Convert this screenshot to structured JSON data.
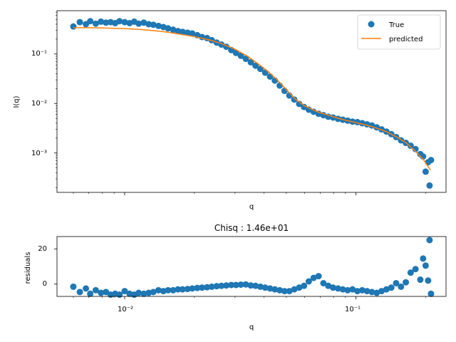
{
  "chart_data": [
    {
      "type": "scatter",
      "xlabel": "q",
      "ylabel": "I(q)",
      "xscale": "log",
      "yscale": "log",
      "xlim": [
        0.0051,
        0.245
      ],
      "ylim": [
        0.00016,
        0.75
      ],
      "y_tick_labels": [
        "10⁻³",
        "10⁻²",
        "10⁻¹"
      ],
      "y_tick_values": [
        0.001,
        0.01,
        0.1
      ],
      "legend_placement": "top-right",
      "colors": {
        "true": "#1f77b4",
        "predicted": "#ff7f0e"
      },
      "series": [
        {
          "name": "True",
          "kind": "scatter",
          "x": [
            0.006,
            0.0064,
            0.0068,
            0.0071,
            0.0075,
            0.0079,
            0.0083,
            0.0087,
            0.0091,
            0.0095,
            0.01,
            0.0105,
            0.011,
            0.0115,
            0.0121,
            0.0127,
            0.0133,
            0.014,
            0.0147,
            0.0154,
            0.0162,
            0.017,
            0.0178,
            0.0187,
            0.0196,
            0.0206,
            0.0216,
            0.0227,
            0.0238,
            0.025,
            0.0262,
            0.0275,
            0.0289,
            0.0303,
            0.0318,
            0.0334,
            0.0351,
            0.0368,
            0.0386,
            0.0405,
            0.0425,
            0.0446,
            0.0468,
            0.0491,
            0.0515,
            0.0541,
            0.0568,
            0.0596,
            0.0625,
            0.0656,
            0.0689,
            0.0723,
            0.0759,
            0.0796,
            0.0836,
            0.0877,
            0.092,
            0.0966,
            0.1014,
            0.1064,
            0.1116,
            0.1171,
            0.1229,
            0.129,
            0.1354,
            0.1421,
            0.1491,
            0.1565,
            0.1642,
            0.1723,
            0.1808,
            0.1897,
            0.195,
            0.2,
            0.205,
            0.208,
            0.211
          ],
          "y": [
            0.36,
            0.44,
            0.4,
            0.46,
            0.41,
            0.45,
            0.43,
            0.44,
            0.42,
            0.46,
            0.44,
            0.42,
            0.45,
            0.41,
            0.43,
            0.4,
            0.39,
            0.37,
            0.35,
            0.33,
            0.31,
            0.29,
            0.28,
            0.27,
            0.26,
            0.24,
            0.22,
            0.21,
            0.19,
            0.17,
            0.155,
            0.14,
            0.12,
            0.105,
            0.092,
            0.08,
            0.068,
            0.058,
            0.05,
            0.042,
            0.035,
            0.029,
            0.023,
            0.018,
            0.0145,
            0.012,
            0.0098,
            0.0085,
            0.0075,
            0.0068,
            0.0062,
            0.0058,
            0.0054,
            0.0052,
            0.0049,
            0.0047,
            0.0045,
            0.0043,
            0.0042,
            0.004,
            0.0038,
            0.0036,
            0.0033,
            0.003,
            0.0027,
            0.0024,
            0.0021,
            0.0018,
            0.0016,
            0.0014,
            0.0012,
            0.00095,
            0.00085,
            0.00042,
            0.00065,
            0.00022,
            0.00072
          ]
        },
        {
          "name": "predicted",
          "kind": "line",
          "x": [
            0.006,
            0.007,
            0.008,
            0.009,
            0.01,
            0.0115,
            0.013,
            0.015,
            0.017,
            0.02,
            0.023,
            0.026,
            0.03,
            0.034,
            0.038,
            0.042,
            0.046,
            0.05,
            0.055,
            0.06,
            0.065,
            0.07,
            0.076,
            0.082,
            0.09,
            0.1,
            0.11,
            0.12,
            0.135,
            0.15,
            0.165,
            0.18,
            0.195,
            0.21
          ],
          "y": [
            0.34,
            0.34,
            0.335,
            0.33,
            0.325,
            0.315,
            0.3,
            0.28,
            0.255,
            0.225,
            0.195,
            0.165,
            0.125,
            0.09,
            0.062,
            0.043,
            0.029,
            0.019,
            0.012,
            0.009,
            0.0075,
            0.0065,
            0.0058,
            0.0052,
            0.0046,
            0.0041,
            0.0037,
            0.0033,
            0.0027,
            0.0021,
            0.0016,
            0.0011,
            0.00075,
            0.00045
          ]
        }
      ]
    },
    {
      "type": "scatter",
      "title": "Chisq : 1.46e+01",
      "xlabel": "q",
      "ylabel": "residuals",
      "xscale": "log",
      "xlim": [
        0.0051,
        0.245
      ],
      "ylim": [
        -7,
        27
      ],
      "x_tick_labels": [
        "10⁻²",
        "10⁻¹"
      ],
      "x_tick_values": [
        0.01,
        0.1
      ],
      "y_tick_labels": [
        "0",
        "20"
      ],
      "y_tick_values": [
        0,
        20
      ],
      "colors": {
        "points": "#1f77b4"
      },
      "series": [
        {
          "name": "",
          "kind": "scatter",
          "x": [
            0.006,
            0.0064,
            0.0068,
            0.0071,
            0.0075,
            0.0079,
            0.0083,
            0.0087,
            0.0091,
            0.0095,
            0.01,
            0.0105,
            0.011,
            0.0115,
            0.0121,
            0.0127,
            0.0133,
            0.014,
            0.0147,
            0.0154,
            0.0162,
            0.017,
            0.0178,
            0.0187,
            0.0196,
            0.0206,
            0.0216,
            0.0227,
            0.0238,
            0.025,
            0.0262,
            0.0275,
            0.0289,
            0.0303,
            0.0318,
            0.0334,
            0.0351,
            0.0368,
            0.0386,
            0.0405,
            0.0425,
            0.0446,
            0.0468,
            0.0491,
            0.0515,
            0.0541,
            0.0568,
            0.0596,
            0.0625,
            0.0656,
            0.0689,
            0.0723,
            0.0759,
            0.0796,
            0.0836,
            0.0877,
            0.092,
            0.0966,
            0.1014,
            0.1064,
            0.1116,
            0.1171,
            0.1229,
            0.129,
            0.1354,
            0.1421,
            0.1491,
            0.1565,
            0.1642,
            0.1723,
            0.1808,
            0.1897,
            0.195,
            0.2,
            0.205,
            0.208,
            0.211
          ],
          "y": [
            -1.5,
            -4.5,
            -2.5,
            -5.5,
            -3.5,
            -5.0,
            -4.5,
            -6.0,
            -5.5,
            -6.0,
            -4.0,
            -5.5,
            -6.0,
            -5.0,
            -5.5,
            -5.0,
            -4.5,
            -3.5,
            -4.0,
            -3.5,
            -3.5,
            -3.0,
            -3.0,
            -2.8,
            -2.5,
            -2.2,
            -2.0,
            -1.8,
            -1.5,
            -1.2,
            -1.0,
            -0.8,
            -0.5,
            -0.5,
            -0.3,
            -0.2,
            -0.8,
            -1.0,
            -1.5,
            -2.0,
            -2.5,
            -3.0,
            -3.5,
            -4.0,
            -4.0,
            -3.0,
            -2.0,
            -1.0,
            1.5,
            3.5,
            4.5,
            0.5,
            -1.0,
            -2.0,
            -2.5,
            -3.0,
            -3.5,
            -3.0,
            -4.0,
            -3.5,
            -4.0,
            -4.5,
            -5.0,
            -4.0,
            -3.0,
            -2.0,
            0.5,
            -1.5,
            1.0,
            6.5,
            8.5,
            2.5,
            14.5,
            10.5,
            2.0,
            25.0,
            -5.5
          ]
        }
      ]
    }
  ]
}
